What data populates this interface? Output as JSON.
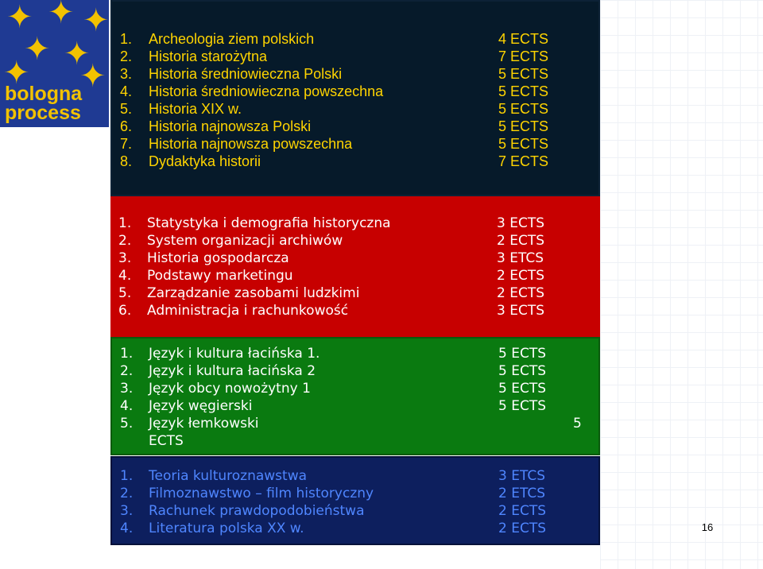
{
  "logo": {
    "line1": "bologna",
    "line2": "process"
  },
  "sections": {
    "black": [
      {
        "num": "1.",
        "name": "Archeologia ziem polskich",
        "ects": "4 ECTS"
      },
      {
        "num": "2.",
        "name": "Historia starożytna",
        "ects": "7 ECTS"
      },
      {
        "num": "3.",
        "name": "Historia średniowieczna Polski",
        "ects": "5 ECTS"
      },
      {
        "num": "4.",
        "name": "Historia średniowieczna powszechna",
        "ects": "5 ECTS"
      },
      {
        "num": "5.",
        "name": "Historia XIX w.",
        "ects": "5 ECTS"
      },
      {
        "num": "6.",
        "name": "Historia najnowsza Polski",
        "ects": "5 ECTS"
      },
      {
        "num": "7.",
        "name": "Historia najnowsza powszechna",
        "ects": "5 ECTS"
      },
      {
        "num": "8.",
        "name": "Dydaktyka historii",
        "ects": "7 ECTS"
      }
    ],
    "red": [
      {
        "num": "1.",
        "name": "Statystyka i demografia historyczna",
        "ects": "3 ECTS"
      },
      {
        "num": "2.",
        "name": "System organizacji archiwów",
        "ects": "2 ECTS"
      },
      {
        "num": "3.",
        "name": "Historia gospodarcza",
        "ects": "3 ETCS"
      },
      {
        "num": "4.",
        "name": "Podstawy marketingu",
        "ects": "2 ECTS"
      },
      {
        "num": "5.",
        "name": "Zarządzanie zasobami ludzkimi",
        "ects": "2 ECTS"
      },
      {
        "num": "6.",
        "name": "Administracja i rachunkowość",
        "ects": "3 ECTS"
      }
    ],
    "green": [
      {
        "num": "1.",
        "name": "Język i kultura łacińska  1.",
        "ects": "5 ECTS"
      },
      {
        "num": "2.",
        "name": "Język i kultura  łacińska 2",
        "ects": "5 ECTS"
      },
      {
        "num": "3.",
        "name": "Język obcy nowożytny  1",
        "ects": "5 ECTS"
      },
      {
        "num": "4.",
        "name": "Język węgierski",
        "ects": "5 ECTS"
      },
      {
        "num": "5.",
        "name": "Język łemkowski",
        "ects": "5",
        "continuation": "ECTS"
      }
    ],
    "blue": [
      {
        "num": "1.",
        "name": "Teoria kulturoznawstwa",
        "ects": "3 ETCS"
      },
      {
        "num": "2.",
        "name": "Filmoznawstwo – film historyczny",
        "ects": "2 ETCS"
      },
      {
        "num": "3.",
        "name": "Rachunek prawdopodobieństwa",
        "ects": "2 ECTS"
      },
      {
        "num": "4.",
        "name": "Literatura polska XX w.",
        "ects": "2 ECTS"
      }
    ]
  },
  "page_number": "16"
}
